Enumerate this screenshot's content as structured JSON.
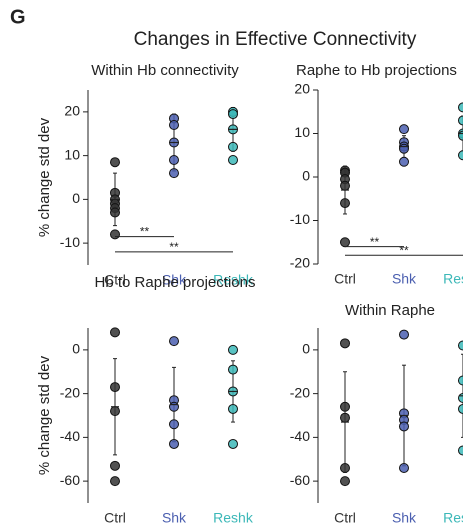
{
  "panel_label": "G",
  "title": "Changes in Effective Connectivity",
  "chart_data": [
    {
      "type": "strip",
      "title": "Within Hb connectivity",
      "ylabel": "% change std dev",
      "ylim": [
        -15,
        25
      ],
      "yticks": [
        -10,
        0,
        10,
        20
      ],
      "series": [
        {
          "name": "Ctrl",
          "color": "#333333",
          "values": [
            8.5,
            1.5,
            0,
            -1,
            -2,
            -3,
            -8
          ],
          "mean": 0,
          "std": 6
        },
        {
          "name": "Shk",
          "color": "#4b5fb0",
          "values": [
            18.5,
            17,
            13,
            9,
            6
          ],
          "mean": 13,
          "std": 6.5
        },
        {
          "name": "Reshk",
          "color": "#3cb8b8",
          "values": [
            20,
            19.5,
            16,
            12,
            9
          ],
          "mean": 16,
          "std": 5
        }
      ],
      "annotations": [
        {
          "text": "**",
          "from": 0,
          "to": 1,
          "y": -8.5
        },
        {
          "text": "**",
          "from": 0,
          "to": 2,
          "y": -12
        }
      ]
    },
    {
      "type": "strip",
      "title": "Raphe to Hb projections",
      "ylim": [
        -20,
        20
      ],
      "yticks": [
        -20,
        -10,
        0,
        10,
        20
      ],
      "series": [
        {
          "name": "Ctrl",
          "color": "#333333",
          "values": [
            1.5,
            1,
            -0.5,
            -2,
            -6,
            -15
          ],
          "mean": -3,
          "std": 5.5
        },
        {
          "name": "Shk",
          "color": "#4b5fb0",
          "values": [
            11,
            8,
            7,
            6.5,
            3.5
          ],
          "mean": 7,
          "std": 2.5
        },
        {
          "name": "Reshk",
          "color": "#3cb8b8",
          "values": [
            16,
            13,
            10,
            9.5,
            5
          ],
          "mean": 10,
          "std": 4
        }
      ],
      "annotations": [
        {
          "text": "**",
          "from": 0,
          "to": 1,
          "y": -16
        },
        {
          "text": "**",
          "from": 0,
          "to": 2,
          "y": -18
        }
      ]
    },
    {
      "type": "strip",
      "title": "Hb to Raphe projections",
      "ylabel": "% change std dev",
      "ylim": [
        -70,
        10
      ],
      "yticks": [
        -60,
        -40,
        -20,
        0
      ],
      "series": [
        {
          "name": "Ctrl",
          "color": "#333333",
          "values": [
            8,
            -17,
            -28,
            -53,
            -60
          ],
          "mean": -26,
          "std": 22
        },
        {
          "name": "Shk",
          "color": "#4b5fb0",
          "values": [
            4,
            -23,
            -26,
            -34,
            -43
          ],
          "mean": -25,
          "std": 17
        },
        {
          "name": "Reshk",
          "color": "#3cb8b8",
          "values": [
            0,
            -9,
            -19,
            -27,
            -43
          ],
          "mean": -19,
          "std": 14
        }
      ]
    },
    {
      "type": "strip",
      "title": "Within Raphe",
      "ylim": [
        -70,
        10
      ],
      "yticks": [
        -60,
        -40,
        -20,
        0
      ],
      "series": [
        {
          "name": "Ctrl",
          "color": "#333333",
          "values": [
            3,
            -26,
            -31,
            -54,
            -60
          ],
          "mean": -33,
          "std": 23
        },
        {
          "name": "Shk",
          "color": "#4b5fb0",
          "values": [
            7,
            -29,
            -32,
            -35,
            -54
          ],
          "mean": -30,
          "std": 23
        },
        {
          "name": "Reshk",
          "color": "#3cb8b8",
          "values": [
            2,
            -14,
            -22,
            -27,
            -46
          ],
          "mean": -21,
          "std": 19
        }
      ]
    }
  ]
}
